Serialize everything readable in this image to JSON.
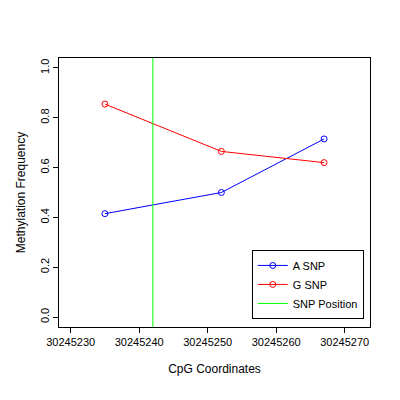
{
  "chart_data": {
    "type": "line",
    "x_label": "CpG Coordinates",
    "y_label": "Methylation Frequency",
    "xlim": [
      30245228.3,
      30245273.7
    ],
    "xticks": [
      30245230,
      30245240,
      30245250,
      30245260,
      30245270
    ],
    "ylim": [
      -0.04,
      1.04
    ],
    "yticks": [
      0.0,
      0.2,
      0.4,
      0.6,
      0.8,
      1.0
    ],
    "grid": false,
    "legend": "bottom right",
    "series": [
      {
        "name": "A SNP",
        "color": "#0000ff",
        "marker": "circle-open",
        "x": [
          30245235,
          30245252,
          30245267
        ],
        "values": [
          0.415,
          0.5,
          0.715
        ]
      },
      {
        "name": "G SNP",
        "color": "#ff0000",
        "marker": "circle-open",
        "x": [
          30245235,
          30245252,
          30245267
        ],
        "values": [
          0.855,
          0.665,
          0.62
        ]
      },
      {
        "name": "SNP Position",
        "color": "#00ff00",
        "type": "vline",
        "x": [
          30245242
        ]
      }
    ]
  }
}
